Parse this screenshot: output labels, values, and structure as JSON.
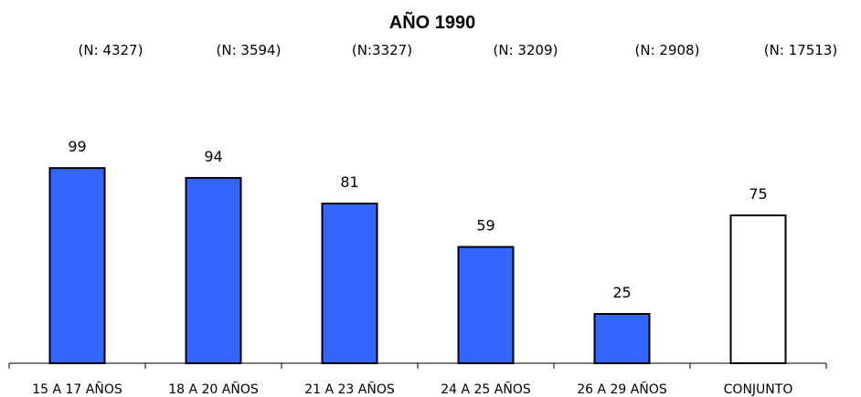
{
  "chart_data": {
    "type": "bar",
    "title": "AÑO 1990",
    "categories": [
      "15 A 17 AÑOS",
      "18 A 20 AÑOS",
      "21 A 23 AÑOS",
      "24 A 25 AÑOS",
      "26 A 29 AÑOS",
      "CONJUNTO"
    ],
    "n_labels": [
      "(N: 4327)",
      "(N: 3594)",
      "(N:3327)",
      "(N: 3209)",
      "(N: 2908)",
      "(N: 17513)"
    ],
    "values": [
      99,
      94,
      81,
      59,
      25,
      75
    ],
    "bar_colors": [
      "#3366FF",
      "#3366FF",
      "#3366FF",
      "#3366FF",
      "#3366FF",
      "#FFFFFF"
    ],
    "ylim": [
      0,
      100
    ],
    "xlabel": "",
    "ylabel": "",
    "grid": false,
    "legend": "none"
  }
}
